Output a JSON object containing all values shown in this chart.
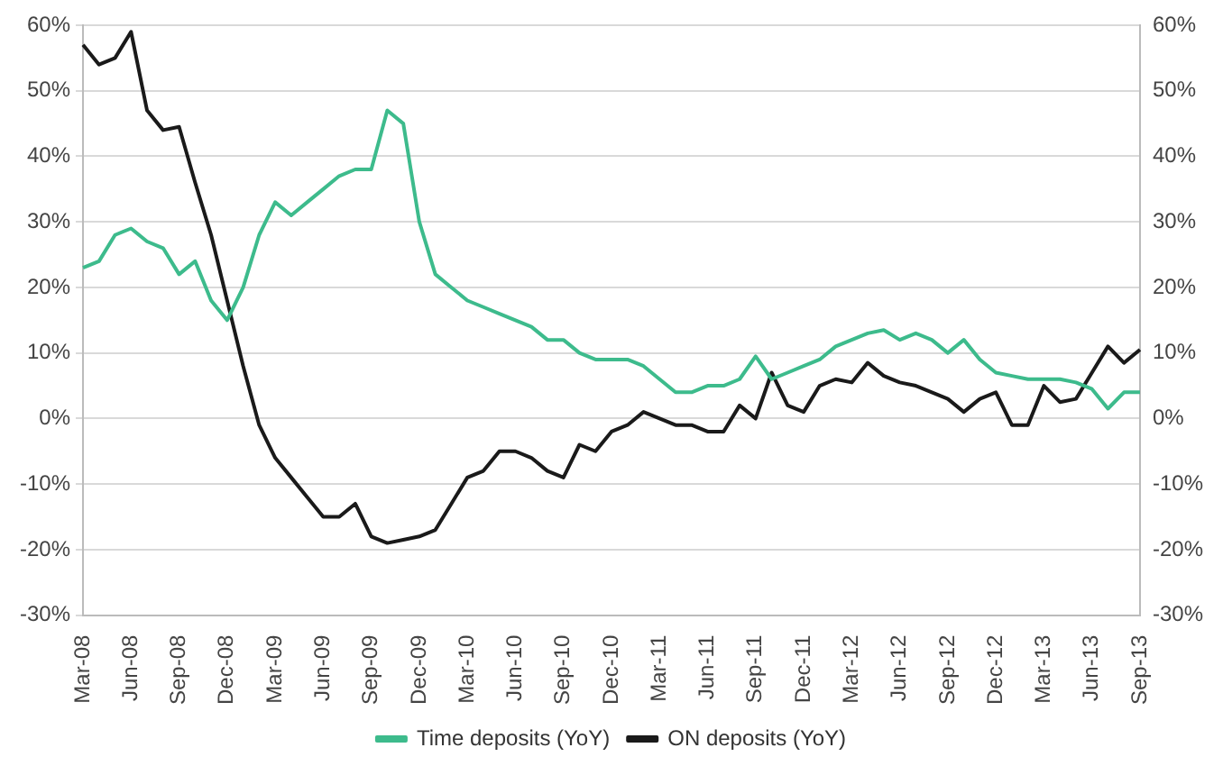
{
  "chart_data": {
    "type": "line",
    "categories": [
      "Mar-08",
      null,
      null,
      "Jun-08",
      null,
      null,
      "Sep-08",
      null,
      null,
      "Dec-08",
      null,
      null,
      "Mar-09",
      null,
      null,
      "Jun-09",
      null,
      null,
      "Sep-09",
      null,
      null,
      "Dec-09",
      null,
      null,
      "Mar-10",
      null,
      null,
      "Jun-10",
      null,
      null,
      "Sep-10",
      null,
      null,
      "Dec-10",
      null,
      null,
      "Mar-11",
      null,
      null,
      "Jun-11",
      null,
      null,
      "Sep-11",
      null,
      null,
      "Dec-11",
      null,
      null,
      "Mar-12",
      null,
      null,
      "Jun-12",
      null,
      null,
      "Sep-12",
      null,
      null,
      "Dec-12",
      null,
      null,
      "Mar-13",
      null,
      null,
      "Jun-13",
      null,
      null,
      "Sep-13"
    ],
    "series": [
      {
        "name": "Time deposits (YoY)",
        "color": "#3dbb8c",
        "values": [
          23,
          24,
          28,
          29,
          27,
          26,
          22,
          24,
          18,
          15,
          20,
          28,
          33,
          31,
          33,
          35,
          37,
          38,
          38,
          47,
          45,
          30,
          22,
          20,
          18,
          17,
          16,
          15,
          14,
          12,
          12,
          10,
          9,
          9,
          9,
          8,
          6,
          4,
          4,
          5,
          5,
          6,
          9.5,
          6,
          7,
          8,
          9,
          11,
          12,
          13,
          13.5,
          12,
          13,
          12,
          10,
          12,
          9,
          7,
          6.5,
          6,
          6,
          6,
          5.5,
          4.5,
          1.5,
          4,
          4
        ]
      },
      {
        "name": "ON deposits (YoY)",
        "color": "#1a1a1a",
        "values": [
          57,
          54,
          55,
          59,
          47,
          44,
          44.5,
          36,
          28,
          18,
          8,
          -1,
          -6,
          -9,
          -12,
          -15,
          -15,
          -13,
          -18,
          -19,
          -18.5,
          -18,
          -17,
          -13,
          -9,
          -8,
          -5,
          -5,
          -6,
          -8,
          -9,
          -4,
          -5,
          -2,
          -1,
          1,
          0,
          -1,
          -1,
          -2,
          -2,
          2,
          0,
          7,
          2,
          1,
          5,
          6,
          5.5,
          8.5,
          6.5,
          5.5,
          5,
          4,
          3,
          1,
          3,
          4,
          -1,
          -1,
          5,
          2.5,
          3,
          7,
          11,
          8.5,
          10.5
        ]
      }
    ],
    "ylim": [
      -30,
      60
    ],
    "yticks": [
      {
        "value": -30,
        "label": "-30%"
      },
      {
        "value": -20,
        "label": "-20%"
      },
      {
        "value": -10,
        "label": "-10%"
      },
      {
        "value": 0,
        "label": "0%"
      },
      {
        "value": 10,
        "label": "10%"
      },
      {
        "value": 20,
        "label": "20%"
      },
      {
        "value": 30,
        "label": "30%"
      },
      {
        "value": 40,
        "label": "40%"
      },
      {
        "value": 50,
        "label": "50%"
      },
      {
        "value": 60,
        "label": "60%"
      }
    ],
    "y2lim": [
      -30,
      60
    ],
    "y2ticks": [
      {
        "value": -30,
        "label": "-30%"
      },
      {
        "value": -20,
        "label": "-20%"
      },
      {
        "value": -10,
        "label": "-10%"
      },
      {
        "value": 0,
        "label": "0%"
      },
      {
        "value": 10,
        "label": "10%"
      },
      {
        "value": 20,
        "label": "20%"
      },
      {
        "value": 30,
        "label": "30%"
      },
      {
        "value": 40,
        "label": "40%"
      },
      {
        "value": 50,
        "label": "50%"
      },
      {
        "value": 60,
        "label": "60%"
      }
    ],
    "grid": "y",
    "legend": "bottom",
    "marker": "none",
    "line_style": "solid"
  }
}
